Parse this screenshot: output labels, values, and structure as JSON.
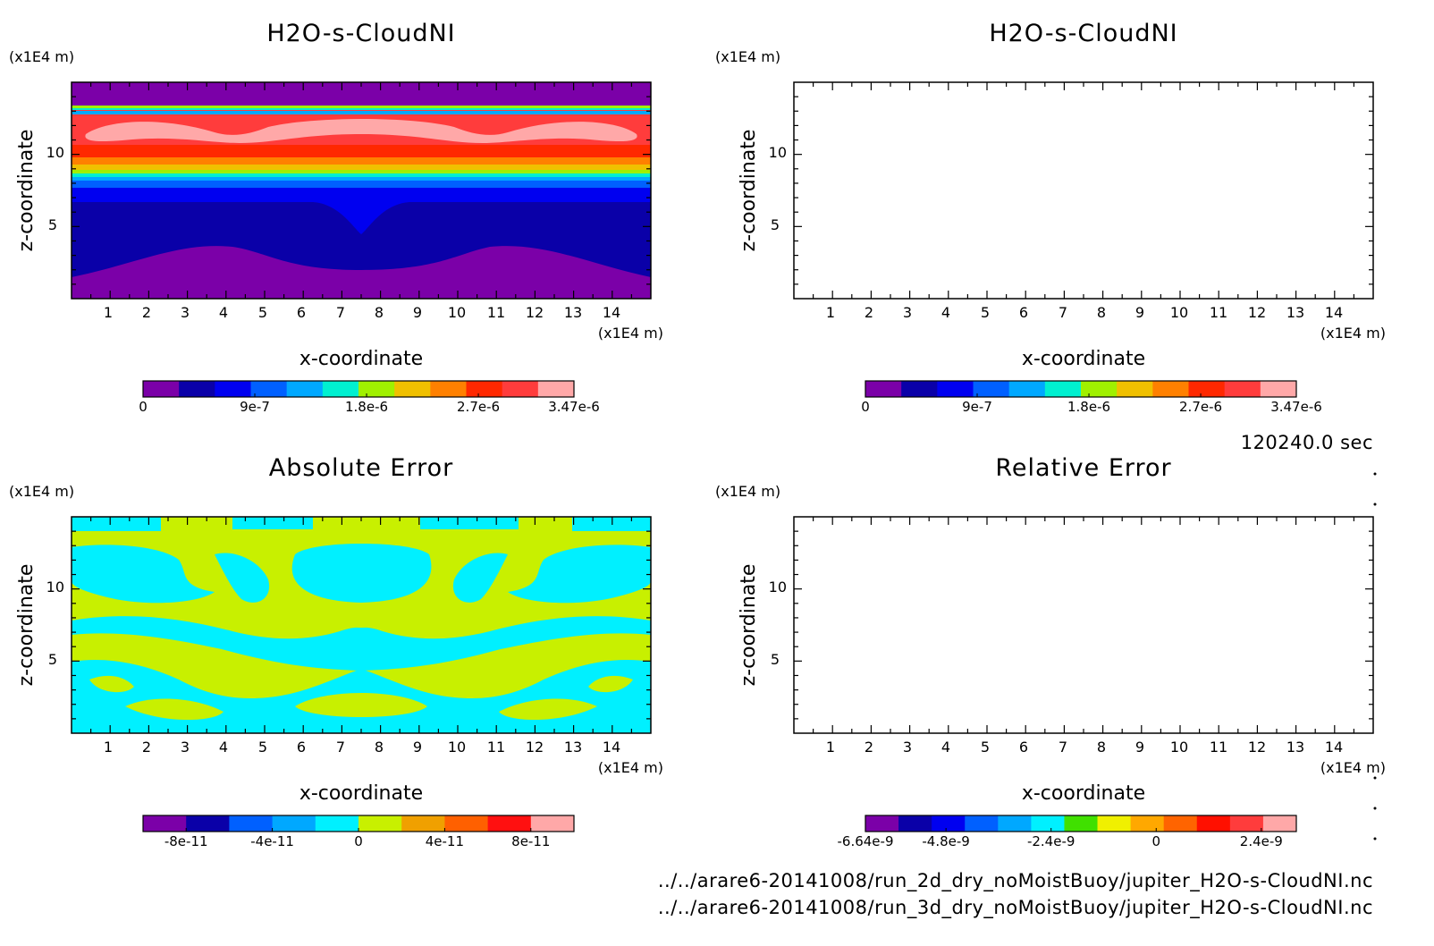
{
  "x_unit": "(x1E4 m)",
  "y_unit": "(x1E4 m)",
  "timestamp": "120240.0 sec",
  "footer": [
    "../../arare6-20141008/run_2d_dry_noMoistBuoy/jupiter_H2O-s-CloudNI.nc",
    "../../arare6-20141008/run_3d_dry_noMoistBuoy/jupiter_H2O-s-CloudNI.nc"
  ],
  "chart_data": [
    {
      "type": "heatmap",
      "title": "H2O-s-CloudNI",
      "xlabel": "x-coordinate",
      "ylabel": "z-coordinate",
      "xlim": [
        0,
        15
      ],
      "ylim": [
        0,
        15
      ],
      "xticks": [
        "1",
        "2",
        "3",
        "4",
        "5",
        "6",
        "7",
        "8",
        "9",
        "10",
        "11",
        "12",
        "13",
        "14"
      ],
      "yticks": [
        "5",
        "10"
      ],
      "colorbar": {
        "colors": [
          "#7b00a8",
          "#0a00a8",
          "#0000f0",
          "#0060ff",
          "#00a8ff",
          "#00f0d0",
          "#a0f000",
          "#f0c000",
          "#ff8000",
          "#ff2800",
          "#ff3c3c",
          "#ffa8a8"
        ],
        "tick_labels": [
          "0",
          "9e-7",
          "1.8e-6",
          "2.7e-6",
          "3.47e-6"
        ],
        "tick_values": [
          0,
          9e-07,
          1.8e-06,
          2.7e-06,
          3.47e-06
        ],
        "min": 0,
        "max": 3.47e-06
      }
    },
    {
      "type": "heatmap",
      "title": "H2O-s-CloudNI",
      "xlabel": "x-coordinate",
      "ylabel": "z-coordinate",
      "xlim": [
        0,
        15
      ],
      "ylim": [
        0,
        15
      ],
      "xticks": [
        "1",
        "2",
        "3",
        "4",
        "5",
        "6",
        "7",
        "8",
        "9",
        "10",
        "11",
        "12",
        "13",
        "14"
      ],
      "yticks": [
        "5",
        "10"
      ],
      "colorbar": {
        "colors": [
          "#7b00a8",
          "#0a00a8",
          "#0000f0",
          "#0060ff",
          "#00a8ff",
          "#00f0d0",
          "#a0f000",
          "#f0c000",
          "#ff8000",
          "#ff2800",
          "#ff3c3c",
          "#ffa8a8"
        ],
        "tick_labels": [
          "0",
          "9e-7",
          "1.8e-6",
          "2.7e-6",
          "3.47e-6"
        ],
        "tick_values": [
          0,
          9e-07,
          1.8e-06,
          2.7e-06,
          3.47e-06
        ],
        "min": 0,
        "max": 3.47e-06
      }
    },
    {
      "type": "heatmap",
      "title": "Absolute Error",
      "xlabel": "x-coordinate",
      "ylabel": "z-coordinate",
      "xlim": [
        0,
        15
      ],
      "ylim": [
        0,
        15
      ],
      "xticks": [
        "1",
        "2",
        "3",
        "4",
        "5",
        "6",
        "7",
        "8",
        "9",
        "10",
        "11",
        "12",
        "13",
        "14"
      ],
      "yticks": [
        "5",
        "10"
      ],
      "colorbar": {
        "colors": [
          "#7b00a8",
          "#0a00a8",
          "#0060ff",
          "#00a8ff",
          "#00f0ff",
          "#c8f000",
          "#f0a000",
          "#ff6000",
          "#ff1010",
          "#ffa8a8"
        ],
        "tick_labels": [
          "-8e-11",
          "-4e-11",
          "0",
          "4e-11",
          "8e-11"
        ],
        "tick_values": [
          -8e-11,
          -4e-11,
          0,
          4e-11,
          8e-11
        ],
        "min": -1e-10,
        "max": 1e-10
      }
    },
    {
      "type": "heatmap",
      "title": "Relative Error",
      "xlabel": "x-coordinate",
      "ylabel": "z-coordinate",
      "xlim": [
        0,
        15
      ],
      "ylim": [
        0,
        15
      ],
      "xticks": [
        "1",
        "2",
        "3",
        "4",
        "5",
        "6",
        "7",
        "8",
        "9",
        "10",
        "11",
        "12",
        "13",
        "14"
      ],
      "yticks": [
        "5",
        "10"
      ],
      "colorbar": {
        "colors": [
          "#7b00a8",
          "#0a00a8",
          "#0000f0",
          "#0060ff",
          "#00a8ff",
          "#00f0ff",
          "#40e000",
          "#f0f000",
          "#ffa800",
          "#ff6400",
          "#ff1000",
          "#ff3c3c",
          "#ffa8a8"
        ],
        "tick_labels": [
          "-6.64e-9",
          "-4.8e-9",
          "-2.4e-9",
          "0",
          "2.4e-9"
        ],
        "tick_values": [
          -6.64e-09,
          -4.8e-09,
          -2.4e-09,
          0,
          2.4e-09
        ],
        "min": -6.64e-09,
        "max": 3.2e-09
      }
    }
  ]
}
